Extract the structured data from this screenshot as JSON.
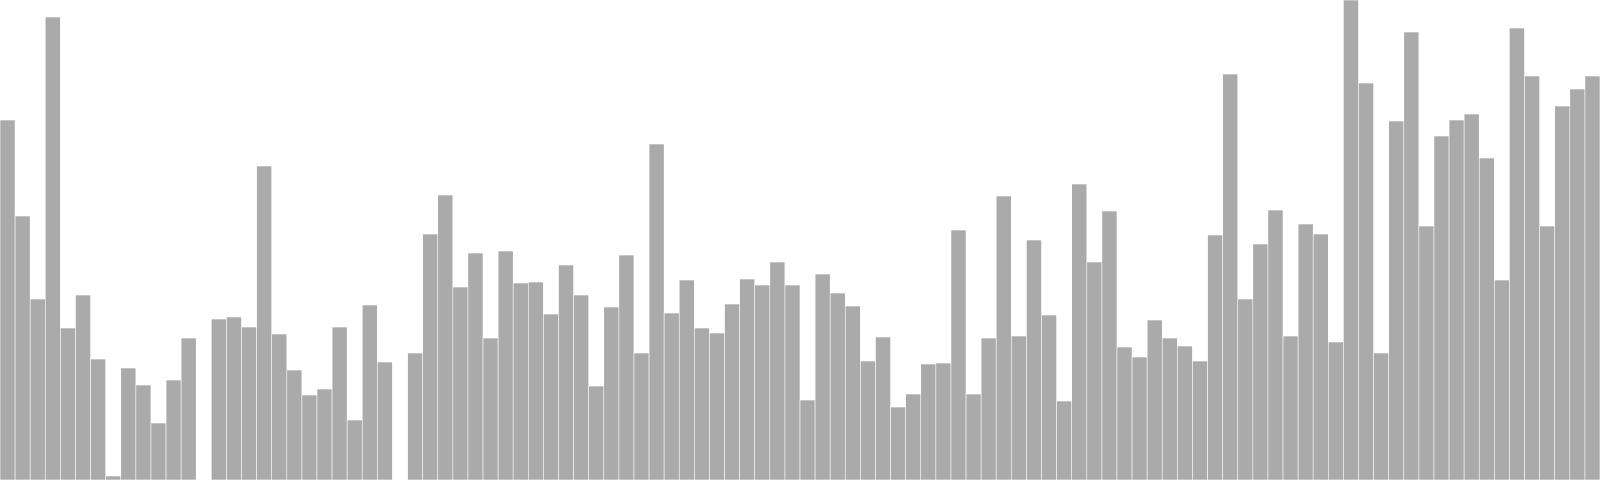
{
  "chart_data": {
    "type": "bar",
    "title": "",
    "xlabel": "",
    "ylabel": "",
    "ylim": [
      0,
      480
    ],
    "grid": false,
    "legend": "none",
    "bar_color": "#aaaaaa",
    "background": "#ffffff",
    "values": [
      360,
      264,
      181,
      463,
      152,
      185,
      121,
      4,
      112,
      95,
      57,
      100,
      142,
      0,
      161,
      163,
      153,
      314,
      146,
      110,
      85,
      91,
      153,
      60,
      175,
      118,
      0,
      127,
      246,
      285,
      193,
      227,
      142,
      229,
      197,
      198,
      166,
      215,
      185,
      94,
      173,
      225,
      127,
      336,
      167,
      200,
      152,
      147,
      176,
      201,
      195,
      218,
      195,
      80,
      206,
      187,
      174,
      119,
      143,
      73,
      86,
      116,
      117,
      250,
      86,
      142,
      284,
      144,
      240,
      165,
      79,
      296,
      218,
      269,
      133,
      123,
      160,
      142,
      134,
      119,
      245,
      406,
      181,
      236,
      270,
      144,
      256,
      246,
      138,
      480,
      397,
      127,
      359,
      448,
      254,
      344,
      360,
      366,
      322,
      200,
      452,
      404,
      254,
      374,
      391,
      404
    ]
  }
}
